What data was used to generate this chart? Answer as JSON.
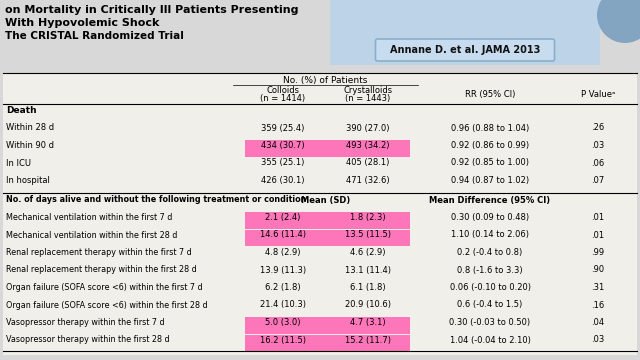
{
  "title_lines": [
    "on Mortality in Critically Ill Patients Presenting",
    "With Hypovolemic Shock",
    "The CRISTAL Randomized Trial"
  ],
  "citation": "Annane D. et al. JAMA 2013",
  "header_group": "No. (%) of Patients",
  "col_headers": [
    "",
    "Colloids\n(n = 1414)",
    "Crystalloids\n(n = 1443)",
    "RR (95% CI)",
    "P Valueᵃ"
  ],
  "section1_header": "Death",
  "section1_rows": [
    [
      "Within 28 d",
      "359 (25.4)",
      "390 (27.0)",
      "0.96 (0.88 to 1.04)",
      ".26",
      false
    ],
    [
      "Within 90 d",
      "434 (30.7)",
      "493 (34.2)",
      "0.92 (0.86 to 0.99)",
      ".03",
      true
    ],
    [
      "In ICU",
      "355 (25.1)",
      "405 (28.1)",
      "0.92 (0.85 to 1.00)",
      ".06",
      false
    ],
    [
      "In hospital",
      "426 (30.1)",
      "471 (32.6)",
      "0.94 (0.87 to 1.02)",
      ".07",
      false
    ]
  ],
  "section2_header": "No. of days alive and without the following treatment or condition",
  "section2_col3": "Mean (SD)",
  "section2_col4": "Mean Difference (95% CI)",
  "section2_rows": [
    [
      "Mechanical ventilation within the first 7 d",
      "2.1 (2.4)",
      "1.8 (2.3)",
      "0.30 (0.09 to 0.48)",
      ".01",
      true
    ],
    [
      "Mechanical ventilation within the first 28 d",
      "14.6 (11.4)",
      "13.5 (11.5)",
      "1.10 (0.14 to 2.06)",
      ".01",
      true
    ],
    [
      "Renal replacement therapy within the first 7 d",
      "4.8 (2.9)",
      "4.6 (2.9)",
      "0.2 (-0.4 to 0.8)",
      ".99",
      false
    ],
    [
      "Renal replacement therapy within the first 28 d",
      "13.9 (11.3)",
      "13.1 (11.4)",
      "0.8 (-1.6 to 3.3)",
      ".90",
      false
    ],
    [
      "Organ failure (SOFA score <6) within the first 7 d",
      "6.2 (1.8)",
      "6.1 (1.8)",
      "0.06 (-0.10 to 0.20)",
      ".31",
      false
    ],
    [
      "Organ failure (SOFA score <6) within the first 28 d",
      "21.4 (10.3)",
      "20.9 (10.6)",
      "0.6 (-0.4 to 1.5)",
      ".16",
      false
    ],
    [
      "Vasopressor therapy within the first 7 d",
      "5.0 (3.0)",
      "4.7 (3.1)",
      "0.30 (-0.03 to 0.50)",
      ".04",
      true
    ],
    [
      "Vasopressor therapy within the first 28 d",
      "16.2 (11.5)",
      "15.2 (11.7)",
      "1.04 (-0.04 to 2.10)",
      ".03",
      true
    ]
  ],
  "highlight_color": "#FF69B4",
  "bg_color": "#D8D8D8",
  "table_bg": "#F0EFE9",
  "citation_bg": "#C8DCF0",
  "citation_border": "#8AAFC8",
  "top_right_bg": "#BDD4E8"
}
